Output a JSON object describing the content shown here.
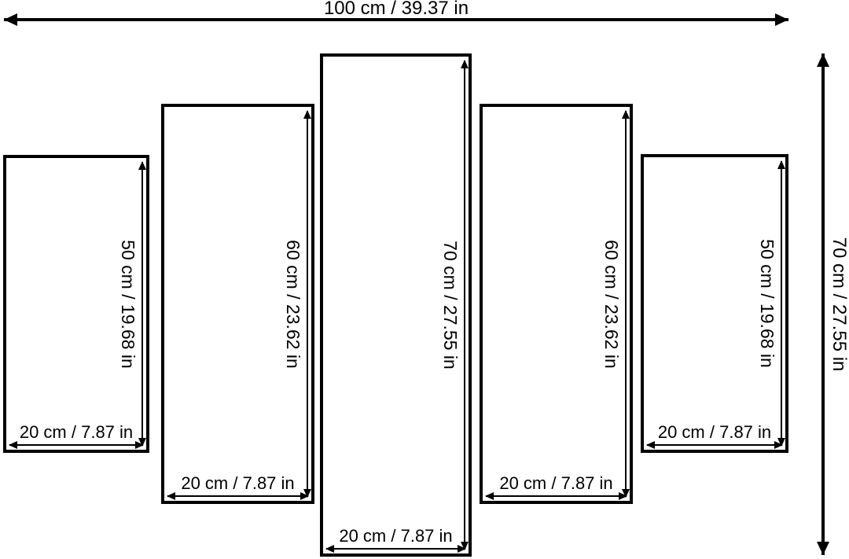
{
  "overall": {
    "width_label": "100 cm / 39.37 in",
    "height_label": "70 cm / 27.55 in"
  },
  "panels": [
    {
      "height_label": "50 cm / 19.68 in",
      "width_label": "20 cm / 7.87 in"
    },
    {
      "height_label": "60 cm / 23.62 in",
      "width_label": "20 cm / 7.87 in"
    },
    {
      "height_label": "70 cm / 27.55 in",
      "width_label": "20 cm / 7.87 in"
    },
    {
      "height_label": "60 cm / 23.62 in",
      "width_label": "20 cm / 7.87 in"
    },
    {
      "height_label": "50 cm / 19.68 in",
      "width_label": "20 cm / 7.87 in"
    }
  ],
  "colors": {
    "line": "#000000",
    "background": "#ffffff",
    "text": "#000000"
  }
}
